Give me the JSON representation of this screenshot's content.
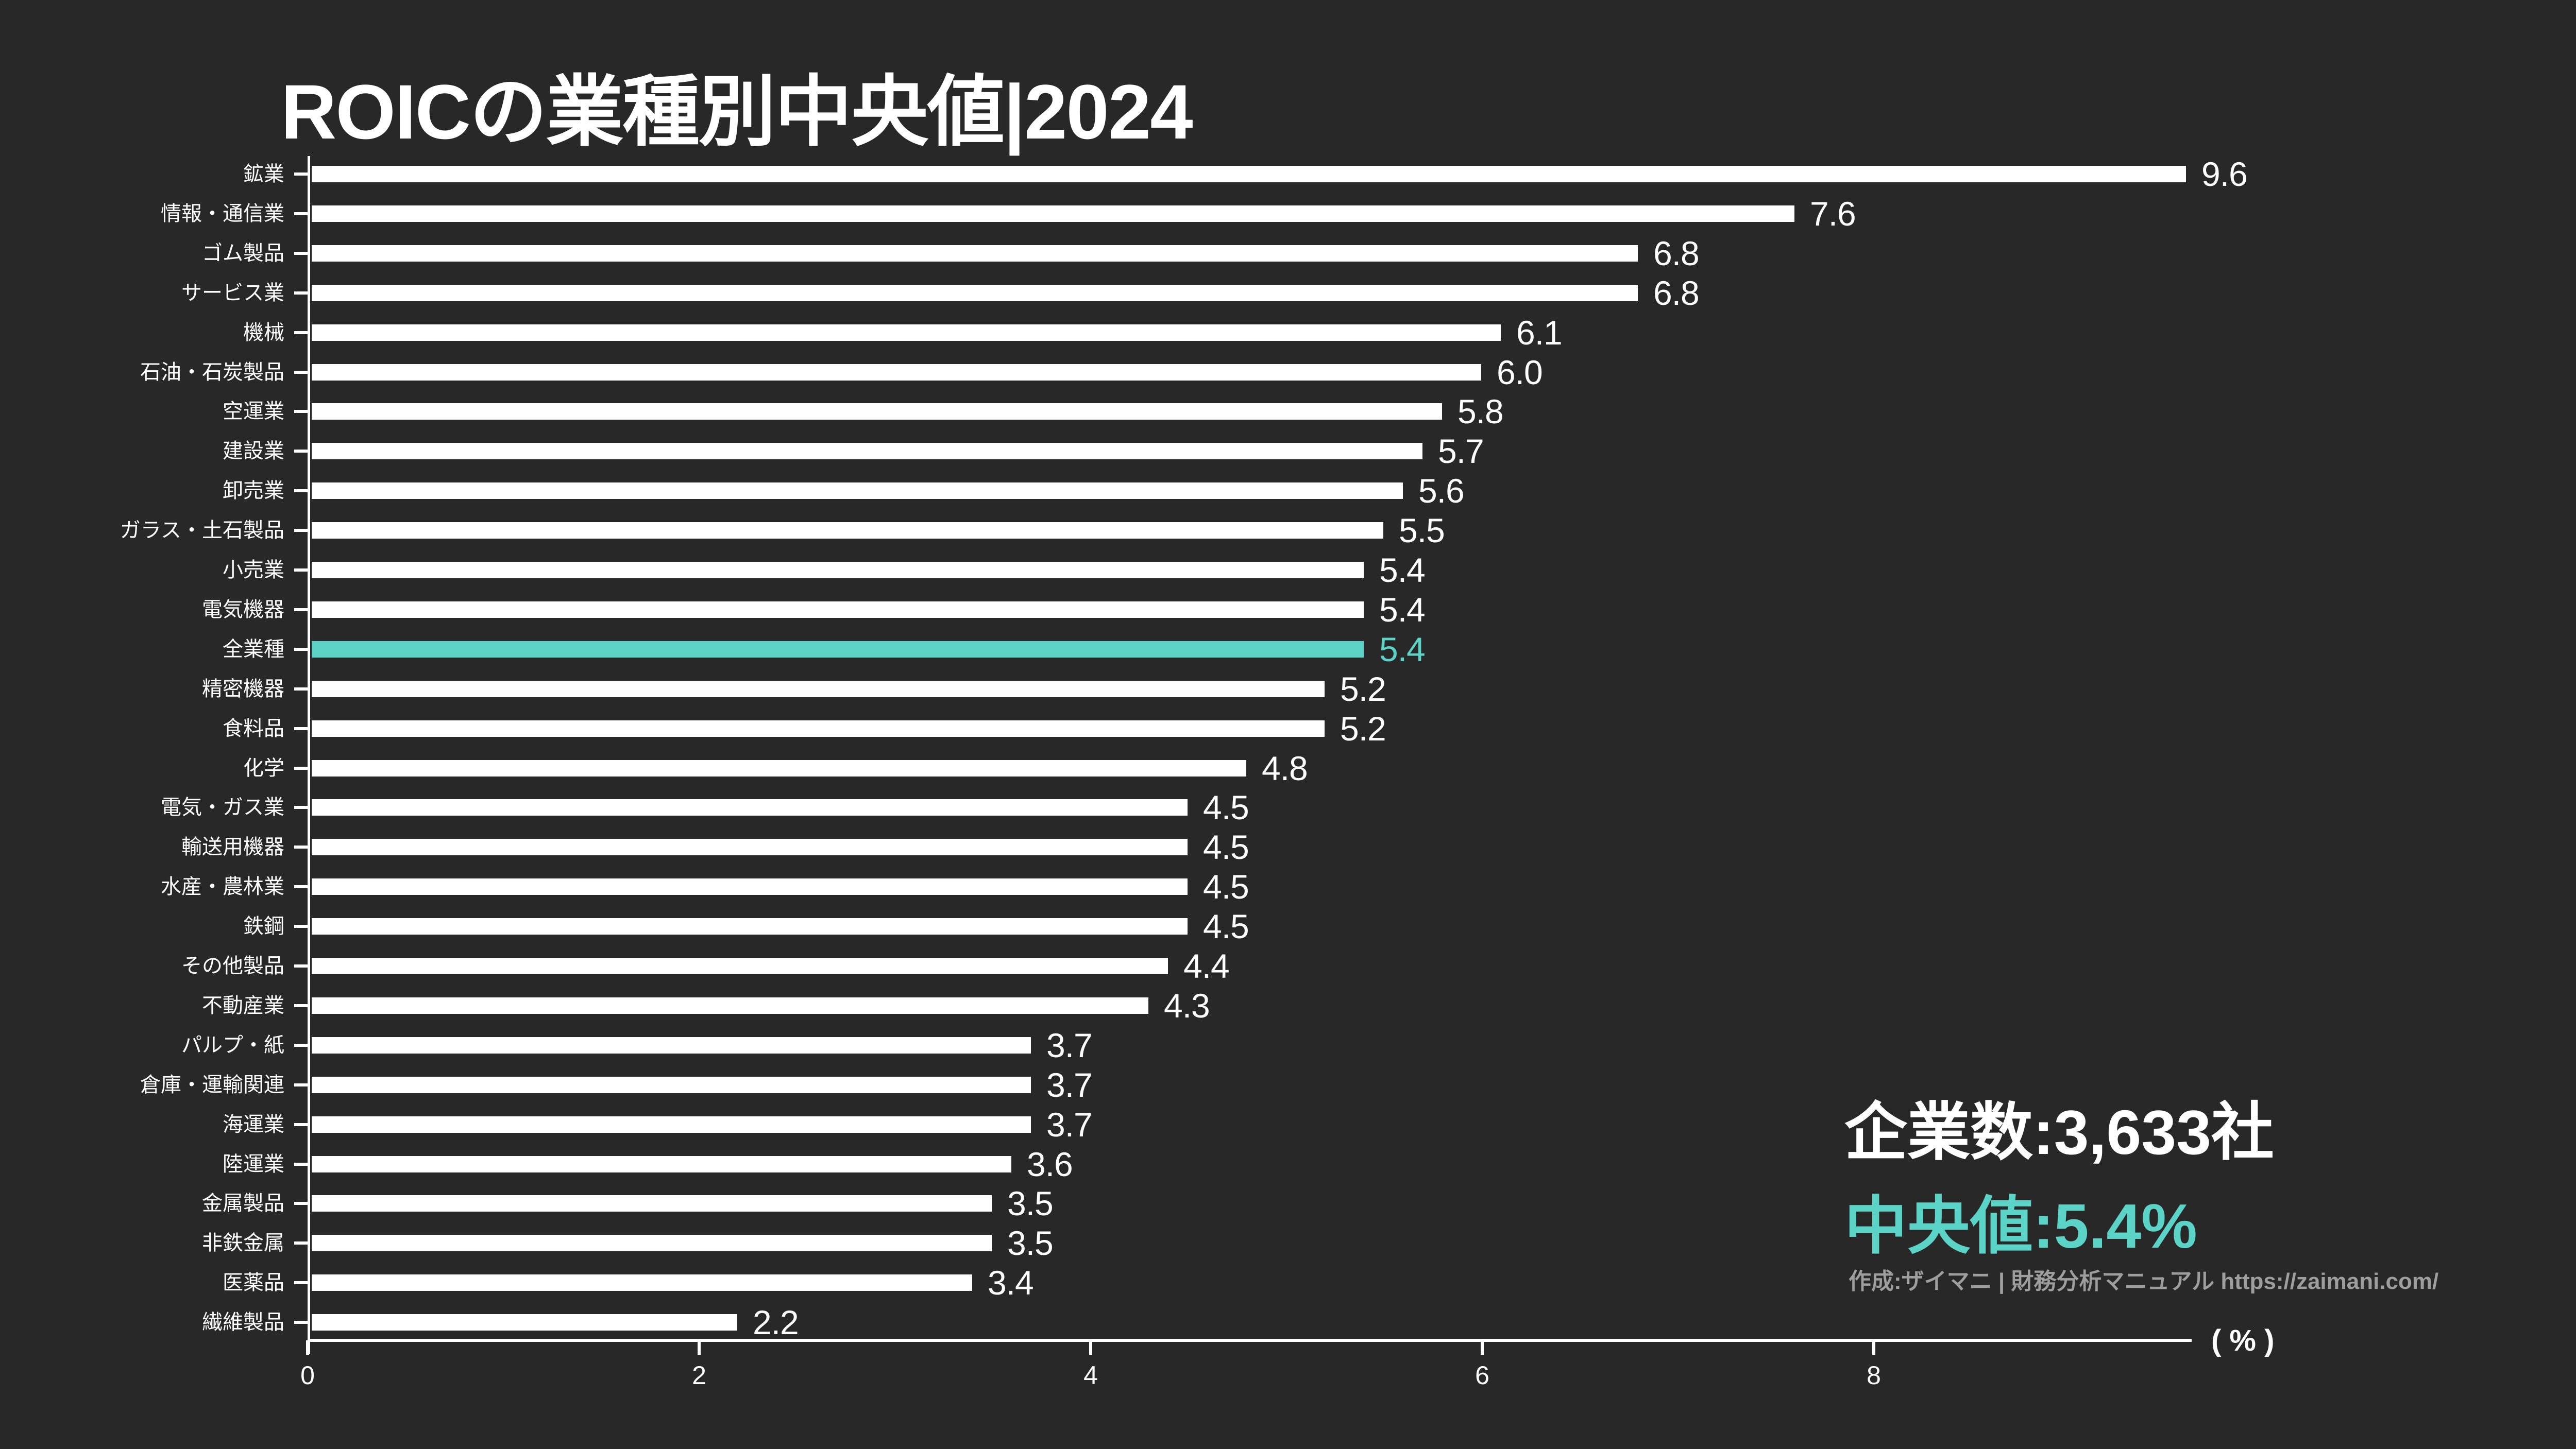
{
  "title": "ROICの業種別中央値|2024",
  "colors": {
    "background": "#282828",
    "bar": "#ffffff",
    "highlight": "#5BD3C7",
    "text": "#ffffff",
    "muted_text": "#9E9E9E"
  },
  "chart_data": {
    "type": "bar",
    "orientation": "horizontal",
    "title": "ROICの業種別中央値|2024",
    "categories": [
      "鉱業",
      "情報・通信業",
      "ゴム製品",
      "サービス業",
      "機械",
      "石油・石炭製品",
      "空運業",
      "建設業",
      "卸売業",
      "ガラス・土石製品",
      "小売業",
      "電気機器",
      "全業種",
      "精密機器",
      "食料品",
      "化学",
      "電気・ガス業",
      "輸送用機器",
      "水産・農林業",
      "鉄鋼",
      "その他製品",
      "不動産業",
      "パルプ・紙",
      "倉庫・運輸関連",
      "海運業",
      "陸運業",
      "金属製品",
      "非鉄金属",
      "医薬品",
      "繊維製品"
    ],
    "values": [
      9.6,
      7.6,
      6.8,
      6.8,
      6.1,
      6.0,
      5.8,
      5.7,
      5.6,
      5.5,
      5.4,
      5.4,
      5.4,
      5.2,
      5.2,
      4.8,
      4.5,
      4.5,
      4.5,
      4.5,
      4.4,
      4.3,
      3.7,
      3.7,
      3.7,
      3.6,
      3.5,
      3.5,
      3.4,
      2.2
    ],
    "value_labels": [
      "9.6",
      "7.6",
      "6.8",
      "6.8",
      "6.1",
      "6.0",
      "5.8",
      "5.7",
      "5.6",
      "5.5",
      "5.4",
      "5.4",
      "5.4",
      "5.2",
      "5.2",
      "4.8",
      "4.5",
      "4.5",
      "4.5",
      "4.5",
      "4.4",
      "4.3",
      "3.7",
      "3.7",
      "3.7",
      "3.6",
      "3.5",
      "3.5",
      "3.4",
      "2.2"
    ],
    "highlight_category": "全業種",
    "x_ticks": [
      "0",
      "2",
      "4",
      "6",
      "8"
    ],
    "x_tick_values": [
      0,
      2,
      4,
      6,
      8
    ],
    "xlim": [
      0,
      10.2
    ],
    "xlabel": "( % )",
    "ylabel": "",
    "grid": false,
    "legend_position": "none"
  },
  "stats": {
    "companies": "企業数:3,633社",
    "median": "中央値:5.4%"
  },
  "credit": "作成:ザイマニ | 財務分析マニュアル https://zaimani.com/"
}
